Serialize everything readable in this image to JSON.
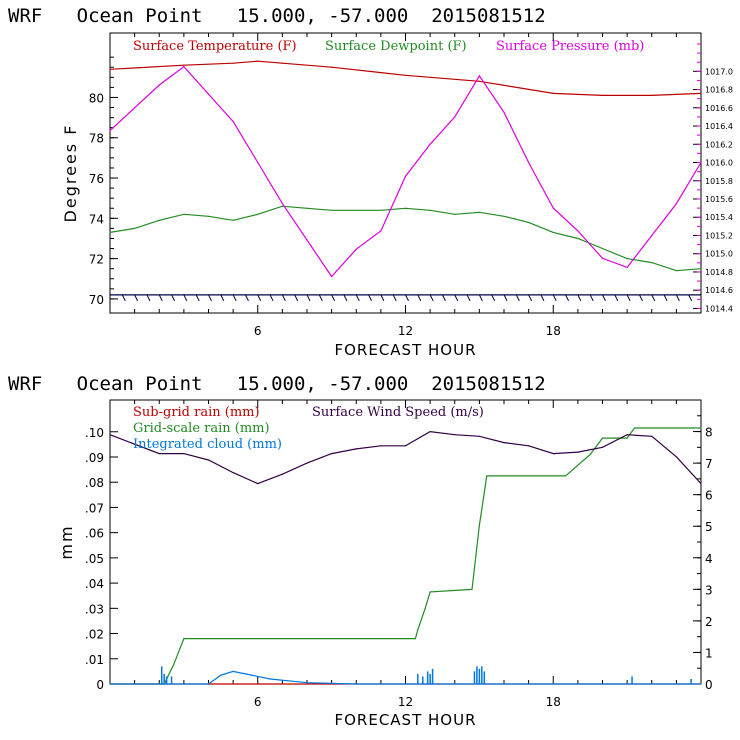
{
  "chart_data": [
    {
      "type": "line",
      "title": "WRF   Ocean Point   15.000, -57.000  2015081512",
      "xlabel": "FORECAST HOUR",
      "ylabel": "Degrees F",
      "xlim": [
        0,
        24
      ],
      "ylim": [
        69.3,
        83.2
      ],
      "xticks": [
        6,
        12,
        18
      ],
      "yticks": [
        70,
        72,
        74,
        76,
        78,
        80
      ],
      "y2lim": [
        1014.35,
        1017.42
      ],
      "y2ticks": [
        "1014.4",
        "1014.6",
        "1014.8",
        "1015.0",
        "1015.2",
        "1015.4",
        "1015.6",
        "1015.8",
        "1016.0",
        "1016.2",
        "1016.4",
        "1016.6",
        "1016.8",
        "1017.0"
      ],
      "legend": "top",
      "series": [
        {
          "name": "Surface Temperature (F)",
          "color": "#bb0000",
          "axis": "left",
          "x": [
            0,
            3,
            5,
            6,
            7,
            9,
            12,
            15,
            18,
            20,
            22,
            24
          ],
          "values": [
            81.4,
            81.6,
            81.7,
            81.8,
            81.7,
            81.5,
            81.1,
            80.8,
            80.2,
            80.1,
            80.1,
            80.2
          ]
        },
        {
          "name": "Surface Dewpoint (F)",
          "color": "#228b22",
          "axis": "left",
          "x": [
            0,
            1,
            2,
            3,
            4,
            5,
            6,
            7,
            8,
            9,
            10,
            11,
            12,
            13,
            14,
            15,
            16,
            17,
            18,
            19,
            20,
            21,
            22,
            23,
            24
          ],
          "values": [
            73.3,
            73.5,
            73.9,
            74.2,
            74.1,
            73.9,
            74.2,
            74.6,
            74.5,
            74.4,
            74.4,
            74.4,
            74.5,
            74.4,
            74.2,
            74.3,
            74.1,
            73.8,
            73.3,
            73.0,
            72.5,
            72.0,
            71.8,
            71.4,
            71.5
          ]
        },
        {
          "name": "Surface Pressure (mb)",
          "color": "#dd00dd",
          "axis": "right",
          "x": [
            0,
            1,
            2,
            3,
            4,
            5,
            6,
            7,
            8,
            9,
            10,
            11,
            12,
            13,
            14,
            15,
            16,
            17,
            18,
            19,
            20,
            21,
            22,
            23,
            24
          ],
          "values": [
            1016.35,
            1016.6,
            1016.85,
            1017.05,
            1016.75,
            1016.45,
            1016.0,
            1015.55,
            1015.15,
            1014.75,
            1015.05,
            1015.25,
            1015.85,
            1016.2,
            1016.5,
            1016.95,
            1016.55,
            1016.0,
            1015.5,
            1015.25,
            1014.95,
            1014.85,
            1015.2,
            1015.55,
            1016.0
          ]
        },
        {
          "name": "",
          "color": "#000044",
          "axis": "left",
          "x": [
            0,
            24
          ],
          "values": [
            70.2,
            70.2
          ]
        }
      ]
    },
    {
      "type": "line",
      "title": "WRF   Ocean Point   15.000, -57.000  2015081512",
      "xlabel": "FORECAST HOUR",
      "ylabel": "mm",
      "xlim": [
        0,
        24
      ],
      "ylim": [
        0,
        0.1126
      ],
      "xticks": [
        6,
        12,
        18
      ],
      "yticks": [
        0,
        0.01,
        0.02,
        0.03,
        0.04,
        0.05,
        0.06,
        0.07,
        0.08,
        0.09,
        0.1
      ],
      "ytick_labels": [
        "0",
        ".01",
        ".02",
        ".03",
        ".04",
        ".05",
        ".06",
        ".07",
        ".08",
        ".09",
        ".10"
      ],
      "y2lim": [
        0,
        9.0
      ],
      "y2ticks": [
        "0",
        "1",
        "2",
        "3",
        "4",
        "5",
        "6",
        "7",
        "8"
      ],
      "legend": "top-left",
      "series": [
        {
          "name": "Sub-grid rain (mm)",
          "color": "#bb0000",
          "axis": "left",
          "x": [
            0,
            24
          ],
          "values": [
            0,
            0
          ]
        },
        {
          "name": "Grid-scale rain (mm)",
          "color": "#228b22",
          "axis": "left",
          "x": [
            0,
            2.2,
            2.6,
            3.0,
            12.4,
            12.5,
            12.8,
            13.0,
            14.7,
            15.0,
            15.3,
            18.5,
            19.5,
            20.0,
            21.0,
            21.3,
            24
          ],
          "values": [
            0,
            0,
            0.008,
            0.018,
            0.018,
            0.0215,
            0.03,
            0.0365,
            0.0375,
            0.063,
            0.0825,
            0.0825,
            0.091,
            0.0975,
            0.0975,
            0.1015,
            0.1015
          ]
        },
        {
          "name": "Integrated cloud (mm)",
          "color": "#0077dd",
          "axis": "left",
          "x": [
            0,
            4,
            4.5,
            5.0,
            5.5,
            6.5,
            8,
            10,
            24
          ],
          "values": [
            0,
            0,
            0.0035,
            0.005,
            0.004,
            0.002,
            0.0005,
            0,
            0
          ]
        },
        {
          "name": "Surface Wind Speed (m/s)",
          "color": "#330044",
          "axis": "right",
          "x": [
            0,
            1,
            2,
            3,
            4,
            5,
            6,
            7,
            8,
            9,
            10,
            11,
            12,
            13,
            14,
            15,
            16,
            17,
            18,
            19,
            20,
            21,
            22,
            23,
            24
          ],
          "values": [
            7.9,
            7.6,
            7.3,
            7.3,
            7.1,
            6.7,
            6.35,
            6.65,
            7.0,
            7.3,
            7.45,
            7.55,
            7.55,
            8.0,
            7.9,
            7.85,
            7.65,
            7.55,
            7.3,
            7.35,
            7.5,
            7.9,
            7.85,
            7.2,
            6.35
          ]
        }
      ]
    }
  ]
}
